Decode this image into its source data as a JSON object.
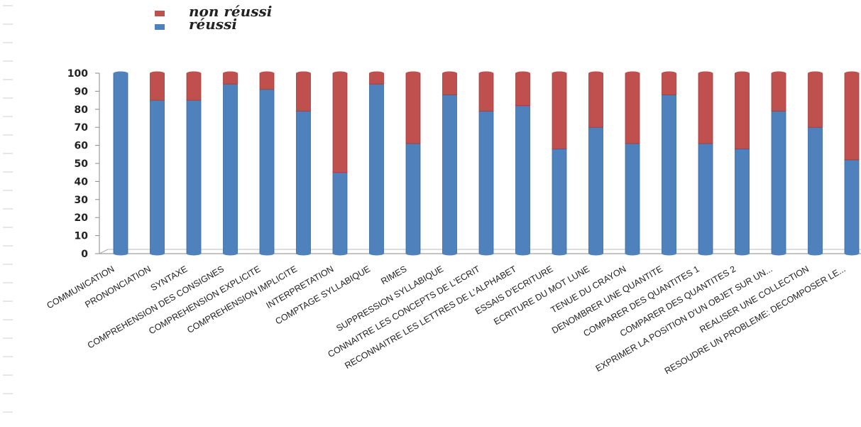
{
  "legend": {
    "items": [
      {
        "label": "non réussi",
        "color": "#c0504d"
      },
      {
        "label": "réussi",
        "color": "#4f81bd"
      }
    ]
  },
  "chart_data": {
    "type": "bar",
    "stacked": true,
    "ylim": [
      0,
      100
    ],
    "yticks": [
      0,
      10,
      20,
      30,
      40,
      50,
      60,
      70,
      80,
      90,
      100
    ],
    "grid": false,
    "legend_position": "top-left",
    "categories": [
      "COMMUNICATION",
      "PRONONCIATION",
      "SYNTAXE",
      "COMPREHENSION DES CONSIGNES",
      "COMPREHENSION EXPLICITE",
      "COMPREHENSION IMPLICITE",
      "INTERPRETATION",
      "COMPTAGE SYLLABIQUE",
      "RIMES",
      "SUPPRESSION SYLLABIQUE",
      "CONNAITRE LES CONCEPTS DE L'ECRIT",
      "RECONNAITRE LES LETTRES  DE L'ALPHABET",
      "ESSAIS D'ECRITURE",
      "ECRITURE DU MOT LUNE",
      "TENUE DU CRAYON",
      "DENOMBRER  UNE QUANTITE",
      "COMPARER DES QUANTITES  1",
      "COMPARER DES QUANTITES  2",
      "EXPRIMER LA POSITION D'UN OBJET SUR UN...",
      "REALISER UNE COLLECTION",
      "RESOUDRE UN PROBLEME: DECOMPOSER LE..."
    ],
    "series": [
      {
        "name": "réussi",
        "color": "#4f81bd",
        "values": [
          100,
          85,
          85,
          94,
          91,
          79,
          45,
          94,
          61,
          88,
          79,
          82,
          58,
          70,
          61,
          88,
          61,
          58,
          79,
          70,
          52
        ]
      },
      {
        "name": "non réussi",
        "color": "#c0504d",
        "values": [
          0,
          15,
          15,
          6,
          9,
          21,
          55,
          6,
          39,
          12,
          21,
          18,
          42,
          30,
          39,
          12,
          39,
          42,
          21,
          30,
          48
        ]
      }
    ]
  }
}
